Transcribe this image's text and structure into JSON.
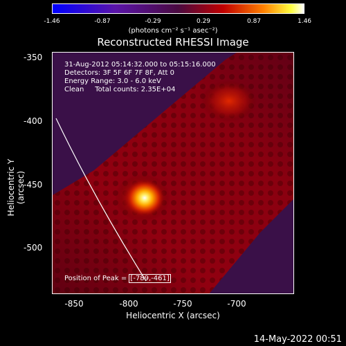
{
  "colorbar": {
    "ticks": [
      "-1.46",
      "-0.87",
      "-0.29",
      "0.29",
      "0.87",
      "1.46"
    ],
    "unit": "(photons cm⁻² s⁻¹ asec⁻²)"
  },
  "title": "Reconstructed RHESSI Image",
  "info": {
    "line1": "31-Aug-2012 05:14:32.000 to 05:15:16.000",
    "line2": "Detectors: 3F 5F 6F 7F 8F, Att 0",
    "line3": "Energy Range: 3.0 - 6.0 keV",
    "line4": "Clean     Total counts: 2.35E+04"
  },
  "peak": {
    "label": "Position of Peak = ",
    "value": "[-789,-461]"
  },
  "axes": {
    "xlabel": "Heliocentric X (arcsec)",
    "ylabel": "Heliocentric Y (arcsec)",
    "xticks": [
      "-850",
      "-800",
      "-750",
      "-700"
    ],
    "yticks": [
      "-350",
      "-400",
      "-450",
      "-500"
    ]
  },
  "timestamp": "14-May-2022 00:51"
}
